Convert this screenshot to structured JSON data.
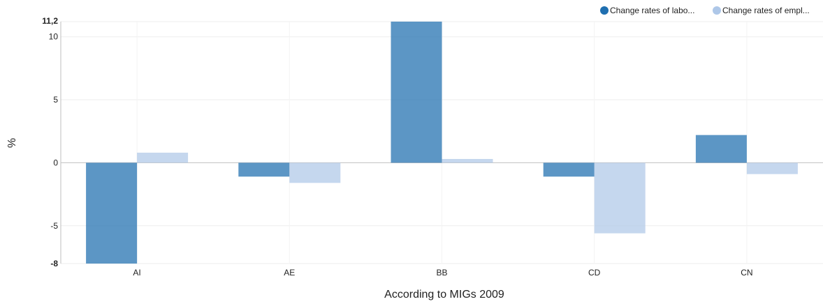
{
  "chart_data": {
    "type": "bar",
    "categories": [
      "AI",
      "AE",
      "BB",
      "CD",
      "CN"
    ],
    "series": [
      {
        "name": "Change rates of labo...",
        "values": [
          -8.0,
          -1.1,
          11.2,
          -1.1,
          2.2
        ],
        "color": "#1f6fb0"
      },
      {
        "name": "Change rates of empl...",
        "values": [
          0.8,
          -1.6,
          0.3,
          -5.6,
          -0.9
        ],
        "color": "#aec7e8"
      }
    ],
    "xlabel": "According to MIGs 2009",
    "ylabel": "%",
    "ylim": [
      -8,
      11.2
    ],
    "yticks": [
      {
        "value": 11.2,
        "label": "11,2",
        "bold": true
      },
      {
        "value": 10,
        "label": "10",
        "bold": false
      },
      {
        "value": 5,
        "label": "5",
        "bold": false
      },
      {
        "value": 0,
        "label": "0",
        "bold": false
      },
      {
        "value": -5,
        "label": "-5",
        "bold": false
      },
      {
        "value": -8,
        "label": "-8",
        "bold": true
      }
    ],
    "grid": true,
    "legend_position": "top-right"
  }
}
